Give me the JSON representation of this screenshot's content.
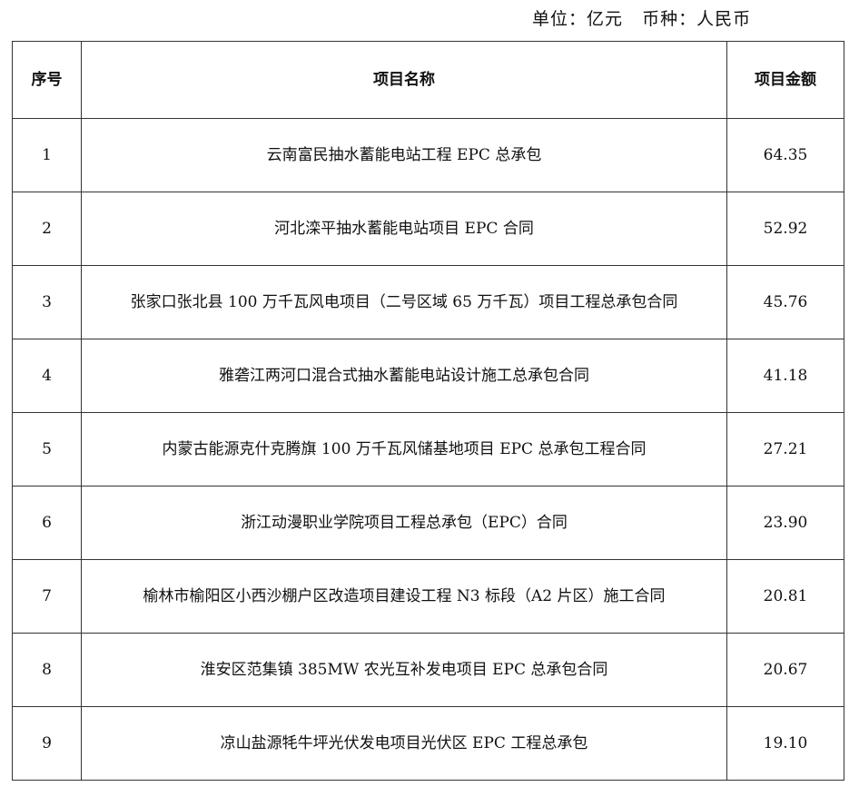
{
  "unit_line": "单位：亿元   币种：人民币",
  "headers": [
    "序号",
    "项目名称",
    "项目金额"
  ],
  "rows": [
    {
      "no": "1",
      "name": "云南富民抽水蓄能电站工程 EPC 总承包",
      "amount": "64.35"
    },
    {
      "no": "2",
      "name": "河北滦平抽水蓄能电站项目 EPC 合同",
      "amount": "52.92"
    },
    {
      "no": "3",
      "name": "张家口张北县 100 万千瓦风电项目（二号区域 65 万千瓦）项目工程总承包合同",
      "amount": "45.76"
    },
    {
      "no": "4",
      "name": "雅砻江两河口混合式抽水蓄能电站设计施工总承包合同",
      "amount": "41.18"
    },
    {
      "no": "5",
      "name": "内蒙古能源克什克腾旗 100 万千瓦风储基地项目 EPC 总承包工程合同",
      "amount": "27.21"
    },
    {
      "no": "6",
      "name": "浙江动漫职业学院项目工程总承包（EPC）合同",
      "amount": "23.90"
    },
    {
      "no": "7",
      "name": "榆林市榆阳区小西沙棚户区改造项目建设工程 N3 标段（A2 片区）施工合同",
      "amount": "20.81"
    },
    {
      "no": "8",
      "name": "淮安区范集镇 385MW 农光互补发电项目 EPC 总承包合同",
      "amount": "20.67"
    },
    {
      "no": "9",
      "name": "凉山盐源牦牛坪光伏发电项目光伏区 EPC 工程总承包",
      "amount": "19.10"
    }
  ]
}
